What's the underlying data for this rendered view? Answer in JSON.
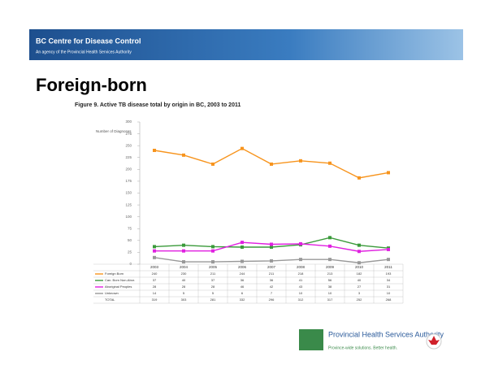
{
  "header": {
    "org": "BC Centre for Disease Control",
    "tagline": "An agency of the Provincial Health Services Authority",
    "slide_title": "Foreign-born"
  },
  "footer": {
    "logo_name": "Provincial Health Services Authority",
    "logo_tagline": "Province-wide solutions. Better health."
  },
  "chart_data": {
    "type": "line",
    "title": "Figure 9.  Active TB disease total by origin in BC, 2003 to 2011",
    "y_label": "Number of Diagnoses",
    "categories": [
      "2003",
      "2004",
      "2005",
      "2006",
      "2007",
      "2008",
      "2009",
      "2010",
      "2011"
    ],
    "series": [
      {
        "name": "Foreign Born",
        "color": "#f7941d",
        "values": [
          240,
          230,
          211,
          244,
          211,
          218,
          213,
          182,
          193
        ]
      },
      {
        "name": "Can. Born Non-Abor.",
        "color": "#3a9a3a",
        "values": [
          37,
          40,
          37,
          36,
          36,
          41,
          56,
          40,
          34
        ]
      },
      {
        "name": "Aboriginal Peoples",
        "color": "#e020e0",
        "values": [
          28,
          28,
          28,
          46,
          42,
          43,
          38,
          27,
          31
        ]
      },
      {
        "name": "Unknown",
        "color": "#999999",
        "values": [
          14,
          5,
          5,
          6,
          7,
          10,
          10,
          3,
          10
        ]
      }
    ],
    "total_label": "TOTAL",
    "totals": [
      319,
      303,
      281,
      332,
      296,
      312,
      317,
      252,
      268
    ],
    "ylim": [
      0,
      300
    ],
    "yticks": [
      0,
      25,
      50,
      75,
      100,
      125,
      150,
      175,
      200,
      225,
      250,
      275,
      300
    ],
    "grid": false
  }
}
